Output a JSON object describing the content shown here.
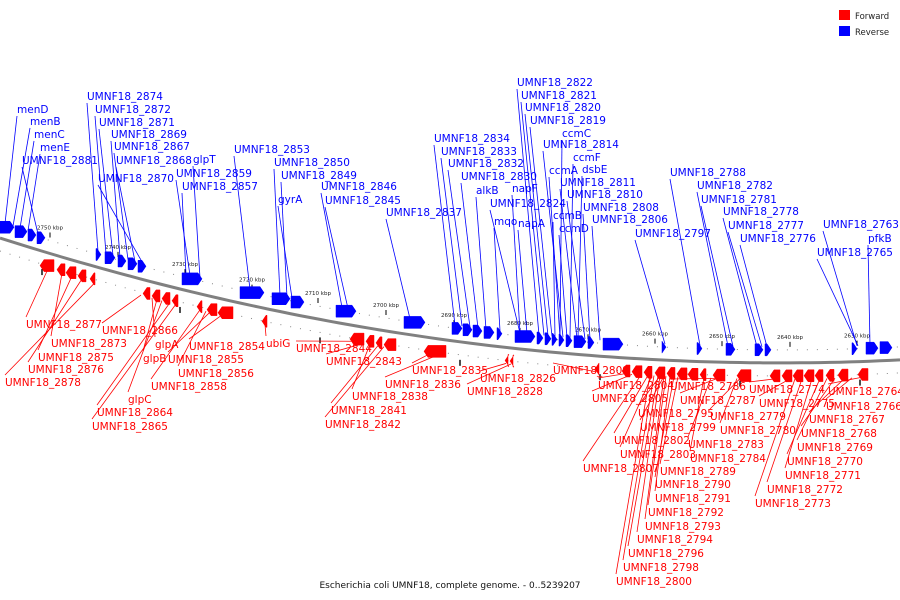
{
  "colors": {
    "forward": "#ff0000",
    "reverse": "#0000ff",
    "backbone": "#808080",
    "text": "#111111"
  },
  "legend": {
    "forward": "Forward",
    "reverse": "Reverse"
  },
  "caption": "Escherichia coli UMNF18, complete genome. - 0..5239207",
  "ticks": [
    "2750 kbp",
    "2740 kbp",
    "2730 kbp",
    "2720 kbp",
    "2710 kbp",
    "2700 kbp",
    "2690 kbp",
    "2680 kbp",
    "2670 kbp",
    "2660 kbp",
    "2650 kbp",
    "2640 kbp",
    "2630 kbp"
  ],
  "reverse_labels": [
    "menD",
    "menB",
    "menC",
    "menE",
    "UMNF18_2881",
    "UMNF18_2874",
    "UMNF18_2872",
    "UMNF18_2871",
    "UMNF18_2869",
    "UMNF18_2867",
    "UMNF18_2868",
    "UMNF18_2870",
    "glpT",
    "UMNF18_2859",
    "UMNF18_2857",
    "UMNF18_2853",
    "UMNF18_2850",
    "UMNF18_2849",
    "gyrA",
    "UMNF18_2846",
    "UMNF18_2845",
    "UMNF18_2837",
    "UMNF18_2834",
    "UMNF18_2833",
    "UMNF18_2832",
    "UMNF18_2830",
    "alkB",
    "mqo",
    "napF",
    "UMNF18_2824",
    "napA",
    "UMNF18_2822",
    "UMNF18_2821",
    "UMNF18_2820",
    "UMNF18_2819",
    "ccmC",
    "UMNF18_2814",
    "ccmF",
    "ccmA",
    "dsbE",
    "UMNF18_2811",
    "UMNF18_2810",
    "ccmB",
    "ccmD",
    "UMNF18_2808",
    "UMNF18_2806",
    "UMNF18_2797",
    "UMNF18_2788",
    "UMNF18_2782",
    "UMNF18_2781",
    "UMNF18_2778",
    "UMNF18_2777",
    "UMNF18_2776",
    "UMNF18_2763",
    "pfkB",
    "UMNF18_2765"
  ],
  "forward_labels": [
    "UMNF18_2877",
    "UMNF18_2873",
    "UMNF18_2875",
    "UMNF18_2876",
    "UMNF18_2878",
    "UMNF18_2866",
    "glpA",
    "glpB",
    "glpC",
    "UMNF18_2864",
    "UMNF18_2865",
    "UMNF18_2854",
    "UMNF18_2855",
    "UMNF18_2856",
    "UMNF18_2858",
    "ubiG",
    "UMNF18_2844",
    "UMNF18_2843",
    "UMNF18_2838",
    "UMNF18_2841",
    "UMNF18_2842",
    "UMNF18_2835",
    "UMNF18_2836",
    "UMNF18_2826",
    "UMNF18_2828",
    "UMNF18_2809",
    "UMNF18_2804",
    "UMNF18_2805",
    "UMNF18_2786",
    "UMNF18_2787",
    "UMNF18_2795",
    "UMNF18_2799",
    "UMNF18_2779",
    "UMNF18_2780",
    "UMNF18_2802",
    "UMNF18_2783",
    "UMNF18_2803",
    "UMNF18_2784",
    "UMNF18_2807",
    "UMNF18_2789",
    "UMNF18_2790",
    "UMNF18_2791",
    "UMNF18_2792",
    "UMNF18_2793",
    "UMNF18_2794",
    "UMNF18_2796",
    "UMNF18_2798",
    "UMNF18_2800",
    "UMNF18_2774",
    "UMNF18_2775",
    "UMNF18_2764",
    "UMNF18_2766",
    "UMNF18_2767",
    "UMNF18_2768",
    "UMNF18_2769",
    "UMNF18_2770",
    "UMNF18_2771",
    "UMNF18_2772",
    "UMNF18_2773"
  ]
}
